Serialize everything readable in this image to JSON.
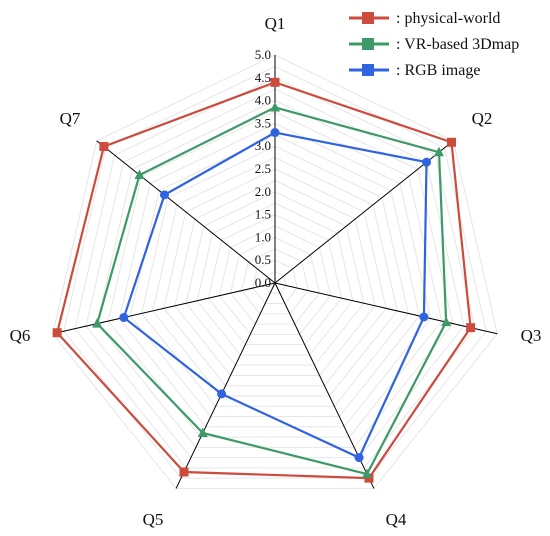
{
  "chart_data": {
    "type": "radar",
    "axes": [
      "Q1",
      "Q2",
      "Q3",
      "Q4",
      "Q5",
      "Q6",
      "Q7"
    ],
    "rlim": [
      0.0,
      5.0
    ],
    "ticks": [
      "0.0",
      "0.5",
      "1.0",
      "1.5",
      "2.0",
      "2.5",
      "3.0",
      "3.5",
      "4.0",
      "4.5",
      "5.0"
    ],
    "tick_values": [
      0.0,
      0.5,
      1.0,
      1.5,
      2.0,
      2.5,
      3.0,
      3.5,
      4.0,
      4.5,
      5.0
    ],
    "grid": true,
    "legend_position": "top-right",
    "series": [
      {
        "name": ": physical-world",
        "color": "#cc4b3c",
        "marker": "square",
        "values": [
          4.4,
          4.95,
          4.4,
          4.75,
          4.6,
          4.9,
          4.8
        ]
      },
      {
        "name": ": VR-based 3Dmap",
        "color": "#3d9a67",
        "marker": "triangle",
        "values": [
          3.85,
          4.6,
          3.85,
          4.65,
          3.65,
          4.0,
          3.8
        ]
      },
      {
        "name": ": RGB image",
        "color": "#2f63e0",
        "marker": "circle",
        "values": [
          3.3,
          4.25,
          3.35,
          4.25,
          2.7,
          3.4,
          3.1
        ]
      }
    ]
  }
}
